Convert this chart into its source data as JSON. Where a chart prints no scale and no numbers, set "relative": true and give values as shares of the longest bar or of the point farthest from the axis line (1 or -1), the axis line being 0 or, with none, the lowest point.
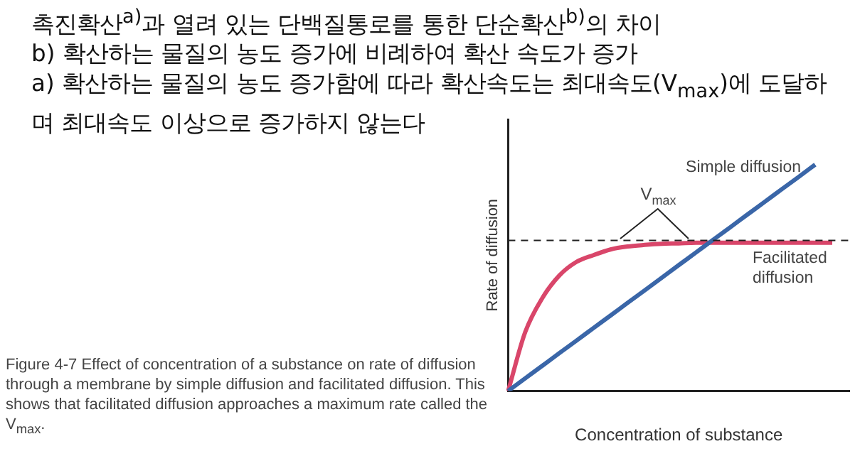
{
  "chart_data": {
    "type": "line",
    "title": "촉진확산$^{a)}$과 열려 있는 단백질통로를 통한 단순확산$^{b)}$의 차이",
    "xlabel": "Concentration of substance",
    "ylabel": "Rate of diffusion",
    "relative": true,
    "legend": false,
    "grid": false,
    "line_style": "solid",
    "marker": "none",
    "categories": [
      null,
      null,
      null,
      null,
      null,
      null,
      null,
      null,
      null,
      null,
      null,
      null,
      null,
      null,
      null,
      null,
      null,
      null,
      null,
      null,
      null
    ],
    "series": [
      {
        "name": "Simple diffusion",
        "color": "#3a66a8",
        "values": [
          0,
          0.056,
          0.111,
          0.167,
          0.222,
          0.278,
          0.333,
          0.389,
          0.444,
          0.5,
          0.556,
          0.611,
          0.667,
          0.722,
          0.778,
          0.833,
          0.889,
          0.944,
          1,
          null,
          null
        ]
      },
      {
        "name": "Facilitated diffusion",
        "color": "#d9466a",
        "values": [
          0,
          0.26,
          0.41,
          0.51,
          0.57,
          0.6,
          0.625,
          0.638,
          0.645,
          0.65,
          0.652,
          0.655,
          0.655,
          0.655,
          0.655,
          0.655,
          0.655,
          0.655,
          0.655,
          0.655,
          null
        ]
      }
    ],
    "ref_lines": [
      {
        "axis": "y",
        "value": 0.665,
        "label": "V$_{max}$",
        "color": "#222222",
        "line_style": "dashed"
      }
    ],
    "annotations": [
      "b) 확산하는 물질의 농도 증가에 비례하여 확산 속도가 증가",
      "a) 확산하는 물질의 농도 증가함에 따라 확산속도는 최대속도(V$_{max}$)에 도달하며 최대속도 이상으로 증가하지 않는다",
      "Figure 4-7 Effect of concentration of a substance on rate of diffusion through a membrane by simple diffusion and facilitated diffusion. This shows that facilitated diffusion approaches a maximum rate called the V$_{max}$."
    ]
  }
}
